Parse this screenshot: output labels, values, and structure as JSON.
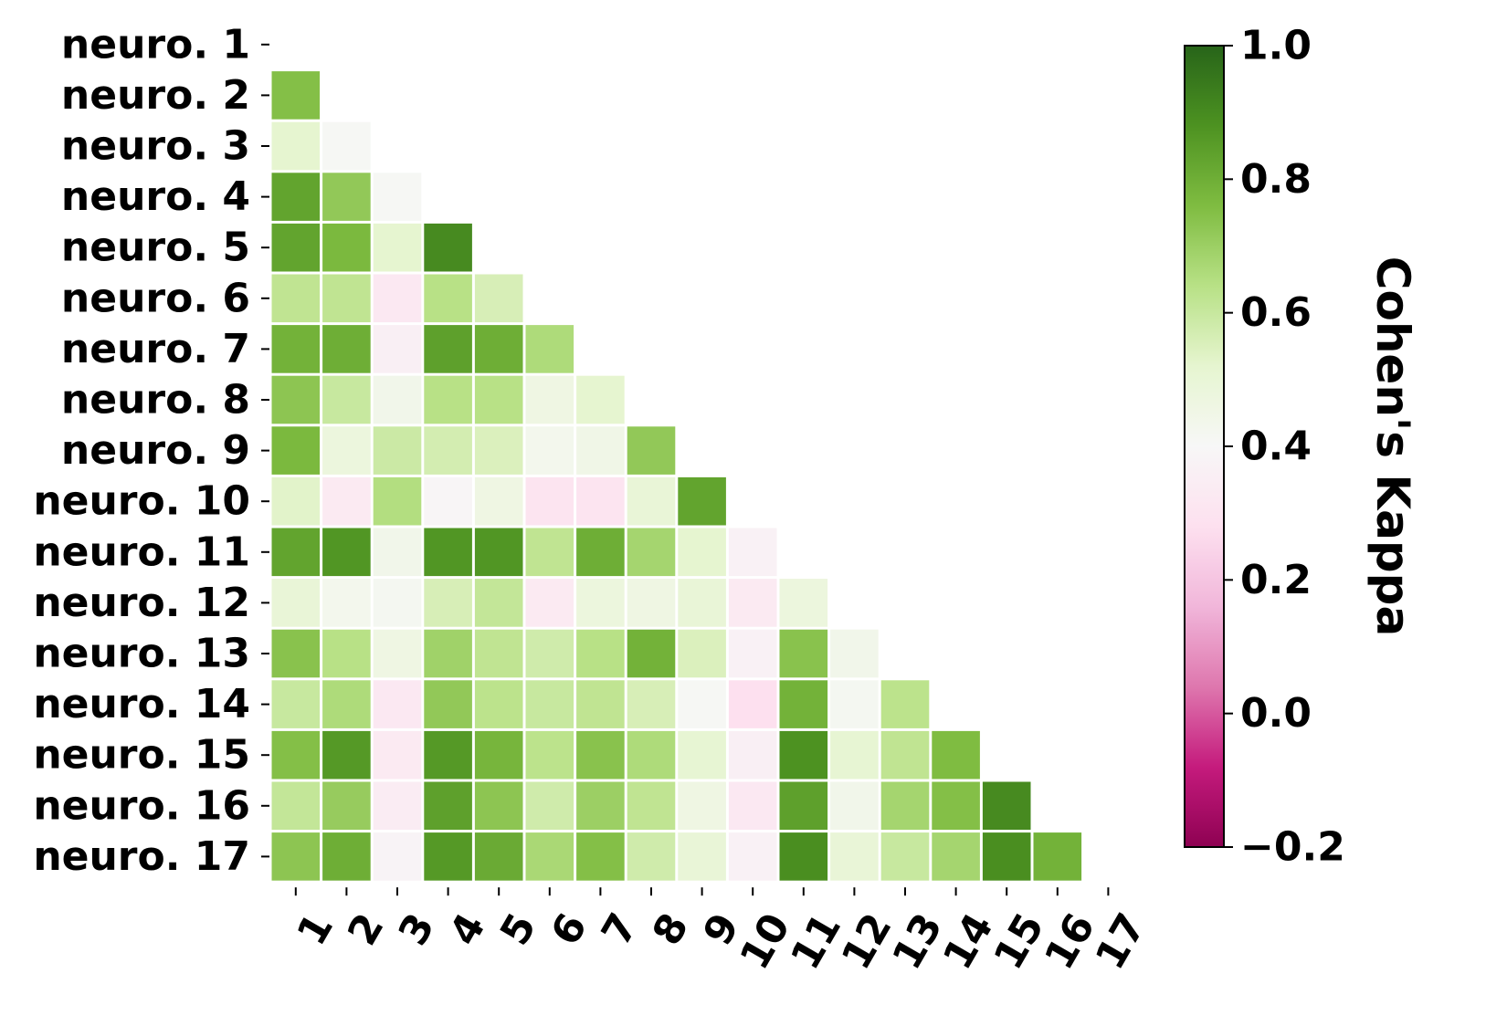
{
  "chart_data": {
    "type": "heatmap",
    "layout": "lower-triangle",
    "row_labels": [
      "neuro. 1",
      "neuro. 2",
      "neuro. 3",
      "neuro. 4",
      "neuro. 5",
      "neuro. 6",
      "neuro. 7",
      "neuro. 8",
      "neuro. 9",
      "neuro. 10",
      "neuro. 11",
      "neuro. 12",
      "neuro. 13",
      "neuro. 14",
      "neuro. 15",
      "neuro. 16",
      "neuro. 17"
    ],
    "col_labels": [
      "1",
      "2",
      "3",
      "4",
      "5",
      "6",
      "7",
      "8",
      "9",
      "10",
      "11",
      "12",
      "13",
      "14",
      "15",
      "16",
      "17"
    ],
    "values": [
      [],
      [
        0.75
      ],
      [
        0.52,
        0.41
      ],
      [
        0.83,
        0.72,
        0.41
      ],
      [
        0.83,
        0.77,
        0.52,
        0.9
      ],
      [
        0.62,
        0.62,
        0.32,
        0.64,
        0.56
      ],
      [
        0.79,
        0.8,
        0.36,
        0.84,
        0.8,
        0.66
      ],
      [
        0.73,
        0.6,
        0.44,
        0.64,
        0.64,
        0.46,
        0.52
      ],
      [
        0.77,
        0.48,
        0.59,
        0.57,
        0.55,
        0.43,
        0.45,
        0.72
      ],
      [
        0.53,
        0.33,
        0.65,
        0.39,
        0.46,
        0.3,
        0.3,
        0.5,
        0.83
      ],
      [
        0.83,
        0.87,
        0.44,
        0.87,
        0.87,
        0.62,
        0.8,
        0.68,
        0.52,
        0.37
      ],
      [
        0.5,
        0.43,
        0.42,
        0.56,
        0.61,
        0.33,
        0.48,
        0.46,
        0.5,
        0.33,
        0.48
      ],
      [
        0.74,
        0.64,
        0.46,
        0.69,
        0.62,
        0.58,
        0.64,
        0.79,
        0.55,
        0.37,
        0.74,
        0.44
      ],
      [
        0.6,
        0.66,
        0.32,
        0.72,
        0.63,
        0.6,
        0.62,
        0.56,
        0.41,
        0.28,
        0.79,
        0.42,
        0.63
      ],
      [
        0.75,
        0.86,
        0.33,
        0.86,
        0.78,
        0.63,
        0.74,
        0.66,
        0.51,
        0.36,
        0.88,
        0.51,
        0.62,
        0.76
      ],
      [
        0.61,
        0.71,
        0.34,
        0.84,
        0.73,
        0.58,
        0.7,
        0.62,
        0.46,
        0.32,
        0.84,
        0.44,
        0.68,
        0.75,
        0.9
      ],
      [
        0.73,
        0.8,
        0.38,
        0.86,
        0.81,
        0.67,
        0.75,
        0.58,
        0.5,
        0.37,
        0.89,
        0.5,
        0.6,
        0.68,
        0.89,
        0.79
      ]
    ],
    "colorbar": {
      "title": "Cohen's Kappa",
      "colormap": "PiYG",
      "vmin": -0.2,
      "vmax": 1.0,
      "center": 0.4,
      "ticks": [
        1.0,
        0.8,
        0.6,
        0.4,
        0.2,
        0.0,
        -0.2
      ],
      "tick_labels": [
        "1.0",
        "0.8",
        "0.6",
        "0.4",
        "0.2",
        "0.0",
        "−0.2"
      ]
    },
    "xlabel": "",
    "ylabel": "",
    "title": ""
  }
}
